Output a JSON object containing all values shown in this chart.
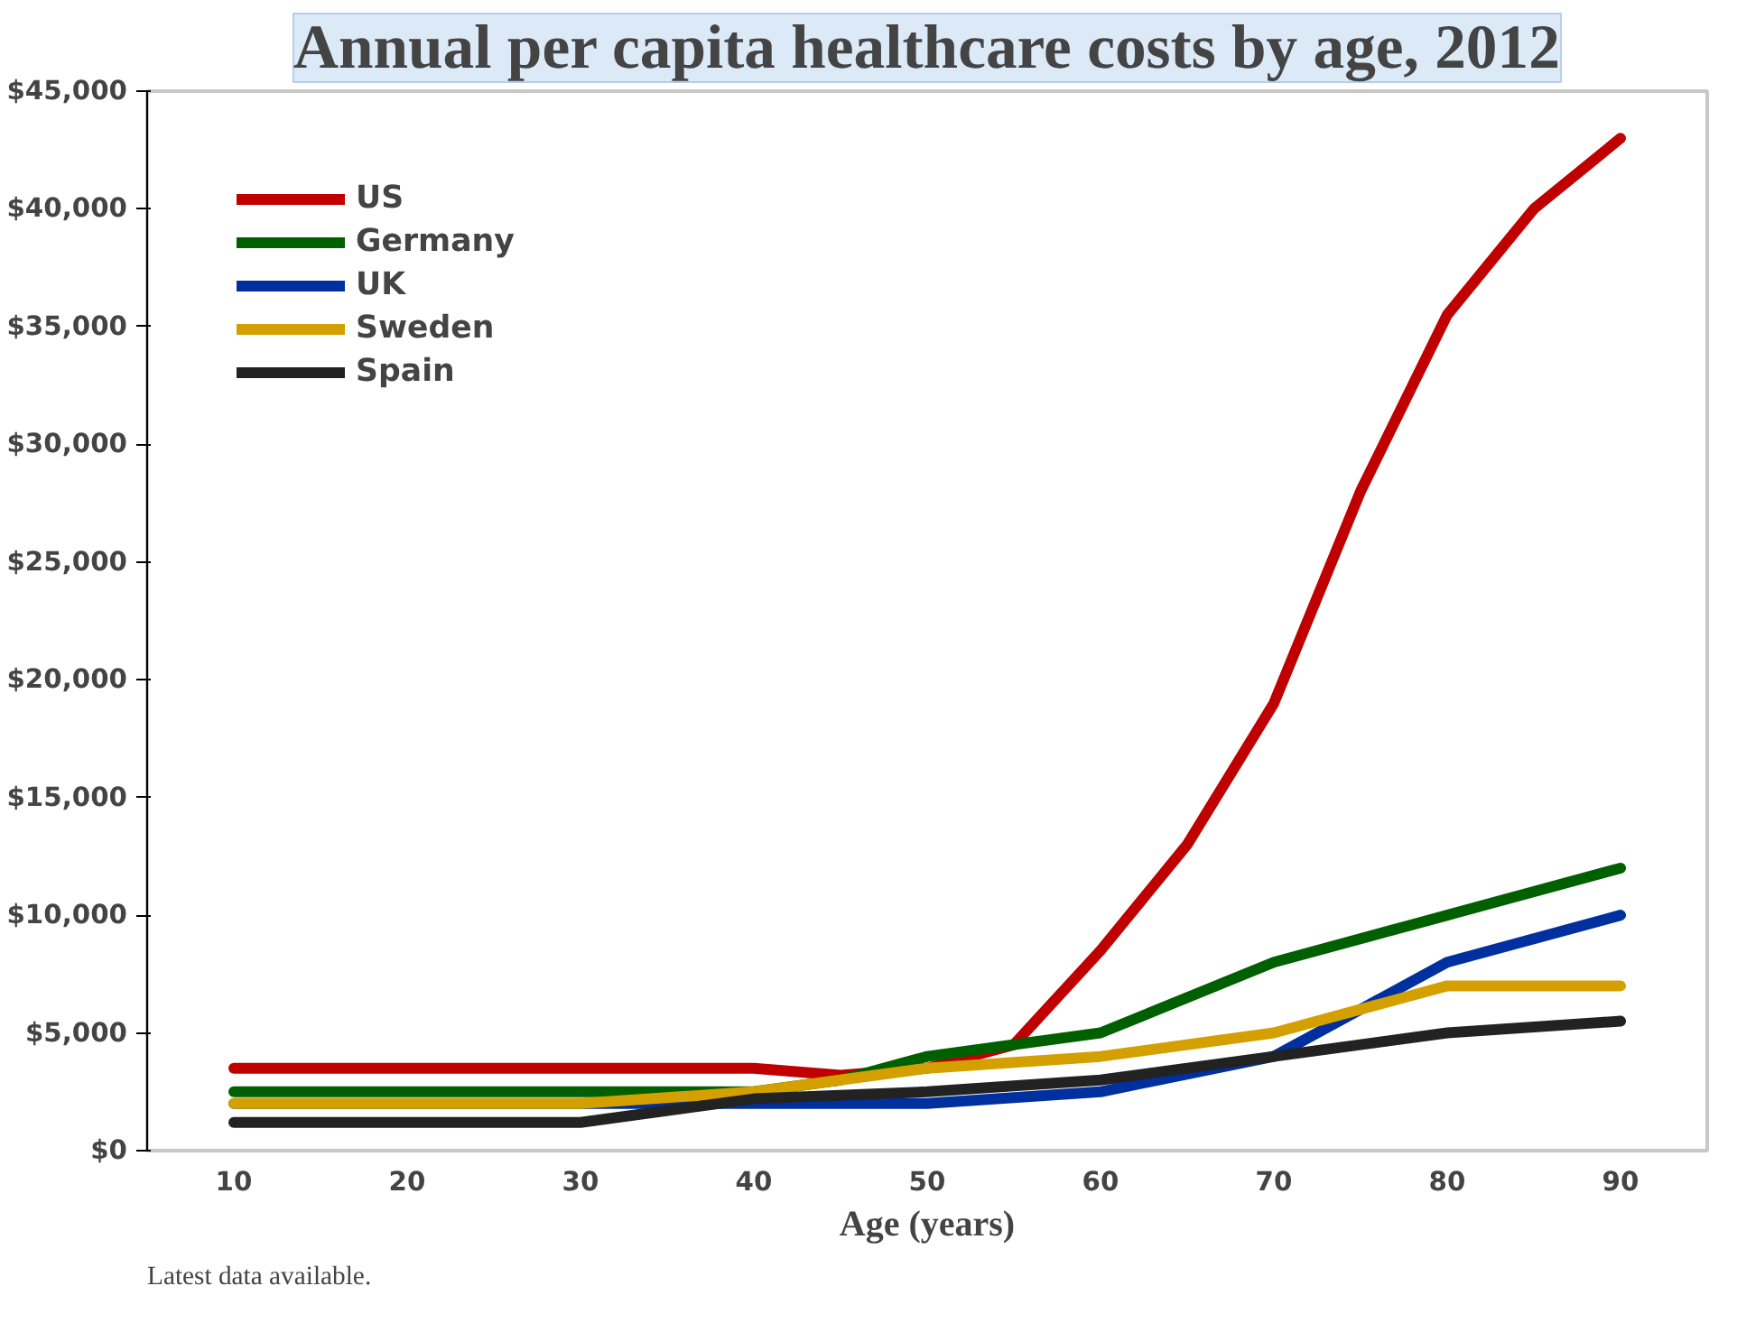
{
  "chart_data": {
    "type": "line",
    "title": "Annual per capita healthcare costs by age, 2012",
    "xlabel": "Age (years)",
    "xlim": [
      5,
      95
    ],
    "xticks": [
      10,
      20,
      30,
      40,
      50,
      60,
      70,
      80,
      90
    ],
    "ylim": [
      0,
      45000
    ],
    "yticks": [
      {
        "value": 0,
        "label": "$0"
      },
      {
        "value": 5000,
        "label": "$5,000"
      },
      {
        "value": 10000,
        "label": "$10,000"
      },
      {
        "value": 15000,
        "label": "$15,000"
      },
      {
        "value": 20000,
        "label": "$20,000"
      },
      {
        "value": 25000,
        "label": "$25,000"
      },
      {
        "value": 30000,
        "label": "$30,000"
      },
      {
        "value": 35000,
        "label": "$35,000"
      },
      {
        "value": 40000,
        "label": "$40,000"
      },
      {
        "value": 45000,
        "label": "$45,000"
      }
    ],
    "grid": false,
    "legend": "top left",
    "line_style": "solid",
    "marker": "none",
    "series": [
      {
        "name": "US",
        "color": "#c00000",
        "x": [
          10,
          20,
          30,
          40,
          45,
          50,
          55,
          60,
          65,
          70,
          75,
          80,
          85,
          90
        ],
        "values": [
          3500,
          3500,
          3500,
          3500,
          3200,
          3500,
          4500,
          8500,
          13000,
          19000,
          28000,
          35500,
          40000,
          43000
        ]
      },
      {
        "name": "Germany",
        "color": "#006000",
        "x": [
          10,
          20,
          30,
          40,
          45,
          50,
          60,
          70,
          80,
          90
        ],
        "values": [
          2500,
          2500,
          2500,
          2500,
          3000,
          4000,
          5000,
          8000,
          10000,
          12000
        ]
      },
      {
        "name": "UK",
        "color": "#0030a0",
        "x": [
          10,
          20,
          30,
          40,
          50,
          60,
          70,
          75,
          80,
          90
        ],
        "values": [
          2000,
          2000,
          2000,
          2000,
          2000,
          2500,
          4000,
          6000,
          8000,
          10000
        ]
      },
      {
        "name": "Sweden",
        "color": "#d4a000",
        "x": [
          10,
          20,
          30,
          40,
          50,
          60,
          70,
          80,
          90
        ],
        "values": [
          2000,
          2000,
          2000,
          2500,
          3500,
          4000,
          5000,
          7000,
          7000
        ]
      },
      {
        "name": "Spain",
        "color": "#222222",
        "x": [
          10,
          20,
          30,
          40,
          50,
          60,
          70,
          80,
          90
        ],
        "values": [
          1200,
          1200,
          1200,
          2200,
          2500,
          3000,
          4000,
          5000,
          5500
        ]
      }
    ],
    "annotations": [
      "Latest data available."
    ]
  }
}
